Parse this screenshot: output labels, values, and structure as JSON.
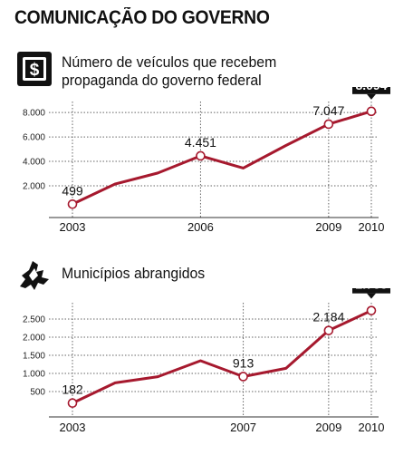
{
  "header": {
    "title": "COMUNICAÇÃO DO GOVERNO"
  },
  "colors": {
    "line": "#a6192e",
    "marker_fill": "#ffffff",
    "callout": "#111111"
  },
  "icons": {
    "chart1": "money-bill-icon",
    "chart2": "map-state-icon"
  },
  "chart_data": [
    {
      "type": "line",
      "title_lines": [
        "Número de veículos que recebem",
        "propaganda do governo federal"
      ],
      "x": [
        2003,
        2004,
        2005,
        2006,
        2007,
        2008,
        2009,
        2010
      ],
      "values": [
        499,
        2150,
        3050,
        4451,
        3450,
        5300,
        7047,
        8094
      ],
      "x_tick_labels": [
        "2003",
        "2006",
        "2009",
        "2010"
      ],
      "y_ticks": [
        2000,
        4000,
        6000,
        8000
      ],
      "y_tick_labels": [
        "2.000",
        "4.000",
        "6.000",
        "8.000"
      ],
      "ylim": [
        0,
        8600
      ],
      "markers": [
        {
          "year": 2003,
          "value": 499,
          "label": "499",
          "highlight": false
        },
        {
          "year": 2006,
          "value": 4451,
          "label": "4.451",
          "highlight": false
        },
        {
          "year": 2009,
          "value": 7047,
          "label": "7.047",
          "highlight": false
        },
        {
          "year": 2010,
          "value": 8094,
          "label": "8.094",
          "highlight": true
        }
      ],
      "xlabel": "",
      "ylabel": ""
    },
    {
      "type": "line",
      "title_lines": [
        "Municípios abrangidos"
      ],
      "x": [
        2003,
        2004,
        2005,
        2006,
        2007,
        2008,
        2009,
        2010
      ],
      "values": [
        182,
        740,
        910,
        1350,
        913,
        1140,
        2184,
        2733
      ],
      "x_tick_labels": [
        "2003",
        "2007",
        "2009",
        "2010"
      ],
      "y_ticks": [
        500,
        1000,
        1500,
        2000,
        2500
      ],
      "y_tick_labels": [
        "500",
        "1.000",
        "1.500",
        "2.000",
        "2.500"
      ],
      "ylim": [
        0,
        2850
      ],
      "markers": [
        {
          "year": 2003,
          "value": 182,
          "label": "182",
          "highlight": false
        },
        {
          "year": 2007,
          "value": 913,
          "label": "913",
          "highlight": false
        },
        {
          "year": 2009,
          "value": 2184,
          "label": "2.184",
          "highlight": false
        },
        {
          "year": 2010,
          "value": 2733,
          "label": "2.733",
          "highlight": true
        }
      ],
      "xlabel": "",
      "ylabel": ""
    }
  ]
}
